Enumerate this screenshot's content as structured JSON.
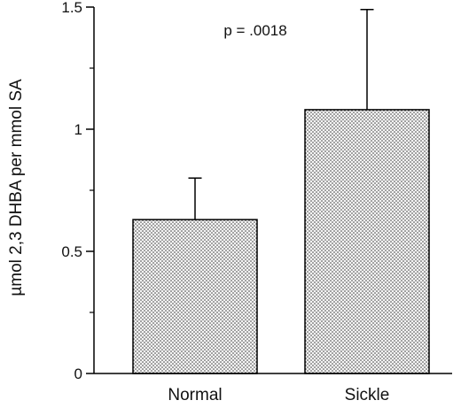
{
  "chart_data": {
    "type": "bar",
    "title": "",
    "xlabel": "",
    "ylabel": "µmol 2,3 DHBA per mmol SA",
    "categories": [
      "Normal",
      "Sickle"
    ],
    "values": [
      0.63,
      1.08
    ],
    "error_upper": [
      0.8,
      1.49
    ],
    "ylim": [
      0,
      1.5
    ],
    "yticks": [
      0,
      0.5,
      1,
      1.5
    ],
    "ytick_labels": [
      "0",
      "0.5",
      "1",
      "1.5"
    ],
    "annotation": "p = .0018",
    "grid": false,
    "legend": "none",
    "bar_fill": "stippled"
  }
}
